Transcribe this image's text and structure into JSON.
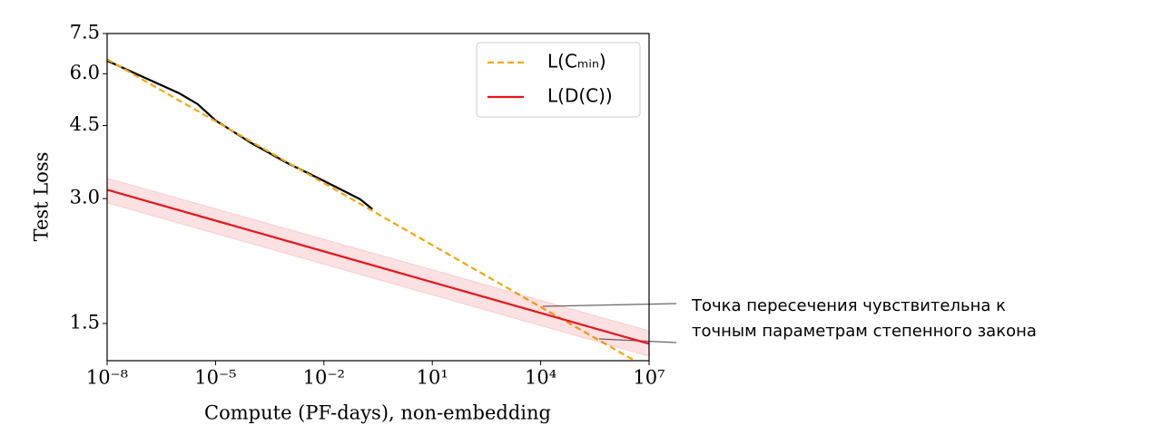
{
  "chart_data": {
    "type": "line",
    "xlabel": "Compute (PF-days), non-embedding",
    "ylabel": "Test Loss",
    "xscale": "log",
    "yscale": "log",
    "xlim": [
      1e-08,
      10000000.0
    ],
    "ylim": [
      1.22,
      7.5
    ],
    "xticks": [
      {
        "value": 1e-08,
        "label": "10⁻⁸"
      },
      {
        "value": 1e-05,
        "label": "10⁻⁵"
      },
      {
        "value": 0.01,
        "label": "10⁻²"
      },
      {
        "value": 10,
        "label": "10¹"
      },
      {
        "value": 10000.0,
        "label": "10⁴"
      },
      {
        "value": 10000000.0,
        "label": "10⁷"
      }
    ],
    "yticks": [
      1.5,
      {
        "value": 3,
        "label": "3.0"
      },
      4.5,
      {
        "value": 6,
        "label": "6.0"
      },
      7.5
    ],
    "legend": "upper right",
    "series": [
      {
        "color": "#000000",
        "x": [
          1e-08,
          1e-07,
          1e-06,
          3.2e-06,
          1e-05,
          0.0001,
          0.001,
          0.01,
          0.1,
          0.22
        ],
        "values": [
          6.45,
          5.89,
          5.38,
          5.07,
          4.63,
          4.08,
          3.65,
          3.31,
          2.99,
          2.83
        ]
      },
      {
        "name": "L(Cₘᵢₙ)",
        "color": "#f5a70a",
        "dashed": true,
        "x": [
          1e-08,
          4000000.0
        ],
        "values": [
          6.5,
          1.22
        ]
      },
      {
        "name": "L(D(C))",
        "color": "#e8141c",
        "x": [
          1e-08,
          10000000.0
        ],
        "values": [
          3.15,
          1.34
        ],
        "band": {
          "upper": [
            3.36,
            1.44
          ],
          "lower": [
            2.93,
            1.25
          ]
        }
      }
    ],
    "annotation": [
      "Точка пересечения чувствительна к",
      "точным параметрам степенного закона"
    ]
  }
}
